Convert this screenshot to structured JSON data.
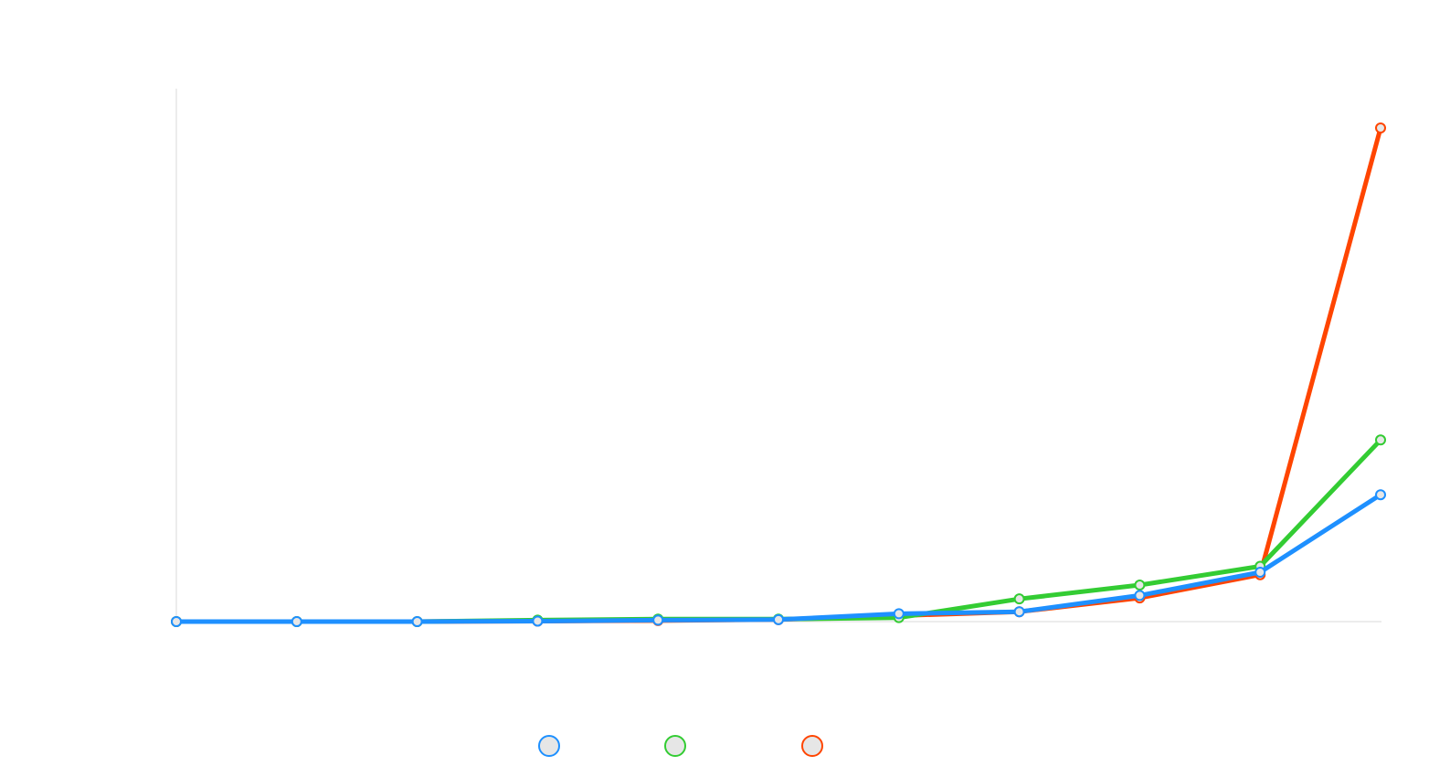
{
  "chart_data": {
    "type": "line",
    "title": "",
    "xlabel": "",
    "ylabel": "",
    "x": [
      0,
      1,
      2,
      3,
      4,
      5,
      6,
      7,
      8,
      9,
      10
    ],
    "ylim": [
      0,
      100
    ],
    "grid": false,
    "legend_position": "bottom",
    "series": [
      {
        "color": "#ff4500",
        "values": [
          0,
          0,
          0,
          0.1,
          0.2,
          0.4,
          1.2,
          2.0,
          4.8,
          9.5,
          100
        ]
      },
      {
        "color": "#33cc33",
        "values": [
          0,
          0,
          0,
          0.3,
          0.5,
          0.5,
          0.8,
          4.6,
          7.4,
          11.2,
          36.8
        ]
      },
      {
        "color": "#1e90ff",
        "values": [
          0,
          0,
          0,
          0.1,
          0.3,
          0.4,
          1.6,
          2.0,
          5.3,
          10.0,
          25.7
        ]
      }
    ],
    "legend": [
      {
        "color": "#1e90ff",
        "label": ""
      },
      {
        "color": "#33cc33",
        "label": ""
      },
      {
        "color": "#ff4500",
        "label": ""
      }
    ]
  }
}
